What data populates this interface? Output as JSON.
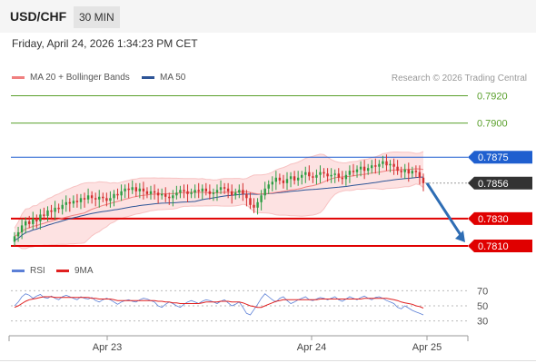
{
  "header": {
    "symbol": "USD/CHF",
    "interval": "30 MIN"
  },
  "datetime": "Friday, April 24, 2026 1:34:23 PM CET",
  "legend": [
    {
      "label": "MA 20 + Bollinger Bands",
      "color": "#f08080"
    },
    {
      "label": "MA 50",
      "color": "#2e5597"
    }
  ],
  "copyright": "Research © 2026 Trading Central",
  "rsi_legend": [
    {
      "label": "RSI",
      "color": "#5b7fd6"
    },
    {
      "label": "9MA",
      "color": "#e02020"
    }
  ],
  "colors": {
    "up": "#2e9e44",
    "down": "#d32f2f",
    "resistance": "#5aa02c",
    "pivot": "#1f5fcf",
    "support": "#e00000",
    "current": "#333333",
    "ma20": "#f08080",
    "ma50": "#2e5597",
    "band_fill": "#fde2e2",
    "arrow": "#2e6db4"
  },
  "chart_data": {
    "type": "candlestick",
    "ylim": [
      0.7802,
      0.7925
    ],
    "x_ticks": [
      "Apr 23",
      "Apr 24",
      "Apr 25"
    ],
    "levels": [
      {
        "label": "0.7920",
        "value": 0.792,
        "role": "resistance",
        "marker": "text"
      },
      {
        "label": "0.7900",
        "value": 0.79,
        "role": "resistance",
        "marker": "text"
      },
      {
        "label": "0.7875",
        "value": 0.7875,
        "role": "pivot",
        "marker": "box"
      },
      {
        "label": "0.7856",
        "value": 0.7856,
        "role": "current",
        "marker": "box"
      },
      {
        "label": "0.7830",
        "value": 0.783,
        "role": "support",
        "marker": "box"
      },
      {
        "label": "0.7810",
        "value": 0.781,
        "role": "support",
        "marker": "box"
      }
    ],
    "close": [
      0.7817,
      0.782,
      0.7825,
      0.7828,
      0.7826,
      0.783,
      0.7828,
      0.7833,
      0.7832,
      0.7836,
      0.7835,
      0.7838,
      0.7837,
      0.784,
      0.7842,
      0.7841,
      0.7843,
      0.7842,
      0.7845,
      0.7844,
      0.7847,
      0.7845,
      0.7844,
      0.7846,
      0.7845,
      0.7843,
      0.7845,
      0.7848,
      0.7847,
      0.785,
      0.7852,
      0.7851,
      0.7853,
      0.785,
      0.7852,
      0.785,
      0.7848,
      0.785,
      0.7849,
      0.7847,
      0.7848,
      0.7846,
      0.7845,
      0.7847,
      0.7849,
      0.7851,
      0.785,
      0.7848,
      0.7849,
      0.7851,
      0.785,
      0.7852,
      0.785,
      0.7848,
      0.7849,
      0.7851,
      0.7853,
      0.7852,
      0.785,
      0.7847,
      0.7849,
      0.7851,
      0.7848,
      0.7845,
      0.784,
      0.7838,
      0.7842,
      0.7847,
      0.7852,
      0.7855,
      0.7857,
      0.786,
      0.7858,
      0.7856,
      0.7859,
      0.7861,
      0.7858,
      0.786,
      0.7862,
      0.7864,
      0.7861,
      0.786,
      0.7862,
      0.7864,
      0.7863,
      0.7861,
      0.7862,
      0.7863,
      0.786,
      0.7859,
      0.7862,
      0.7865,
      0.7864,
      0.7866,
      0.7868,
      0.7865,
      0.7867,
      0.7869,
      0.7868,
      0.787,
      0.7872,
      0.7869,
      0.787,
      0.7868,
      0.7865,
      0.7864,
      0.7866,
      0.7863,
      0.7865,
      0.7864,
      0.786,
      0.7856
    ],
    "rsi": [
      {
        "name": "RSI",
        "values": [
          50,
          55,
          62,
          66,
          64,
          60,
          63,
          65,
          61,
          60,
          63,
          60,
          58,
          62,
          64,
          62,
          60,
          58,
          62,
          60,
          59,
          61,
          57,
          55,
          58,
          60,
          58,
          55,
          52,
          55,
          57,
          58,
          56,
          55,
          58,
          60,
          59,
          57,
          55,
          50,
          48,
          52,
          55,
          53,
          50,
          48,
          52,
          55,
          57,
          55,
          53,
          56,
          58,
          57,
          55,
          53,
          56,
          58,
          54,
          50,
          52,
          55,
          48,
          40,
          38,
          45,
          52,
          60,
          66,
          62,
          58,
          55,
          60,
          62,
          57,
          53,
          55,
          58,
          60,
          62,
          58,
          57,
          59,
          61,
          60,
          58,
          60,
          62,
          58,
          56,
          59,
          62,
          60,
          58,
          61,
          63,
          60,
          58,
          61,
          62,
          60,
          57,
          55,
          53,
          48,
          46,
          50,
          47,
          44,
          42,
          40,
          38
        ]
      },
      {
        "name": "9MA",
        "values": [
          48,
          50,
          53,
          56,
          58,
          59,
          60,
          61,
          62,
          62,
          62,
          61,
          61,
          61,
          61,
          61,
          61,
          61,
          61,
          61,
          61,
          60,
          60,
          59,
          59,
          59,
          59,
          58,
          57,
          57,
          57,
          57,
          57,
          57,
          57,
          57,
          57,
          57,
          57,
          56,
          56,
          55,
          55,
          54,
          54,
          53,
          53,
          53,
          53,
          53,
          53,
          54,
          55,
          55,
          55,
          55,
          56,
          56,
          56,
          55,
          55,
          55,
          54,
          52,
          50,
          49,
          48,
          48,
          50,
          52,
          54,
          56,
          57,
          58,
          58,
          58,
          58,
          58,
          58,
          58,
          58,
          58,
          58,
          59,
          59,
          59,
          59,
          59,
          59,
          59,
          59,
          59,
          59,
          59,
          59,
          60,
          60,
          60,
          60,
          60,
          60,
          60,
          59,
          58,
          57,
          55,
          54,
          53,
          52,
          50,
          49,
          47
        ]
      }
    ],
    "rsi_ylim": [
      20,
      80
    ],
    "rsi_ticks": [
      "70",
      "50",
      "30"
    ]
  }
}
